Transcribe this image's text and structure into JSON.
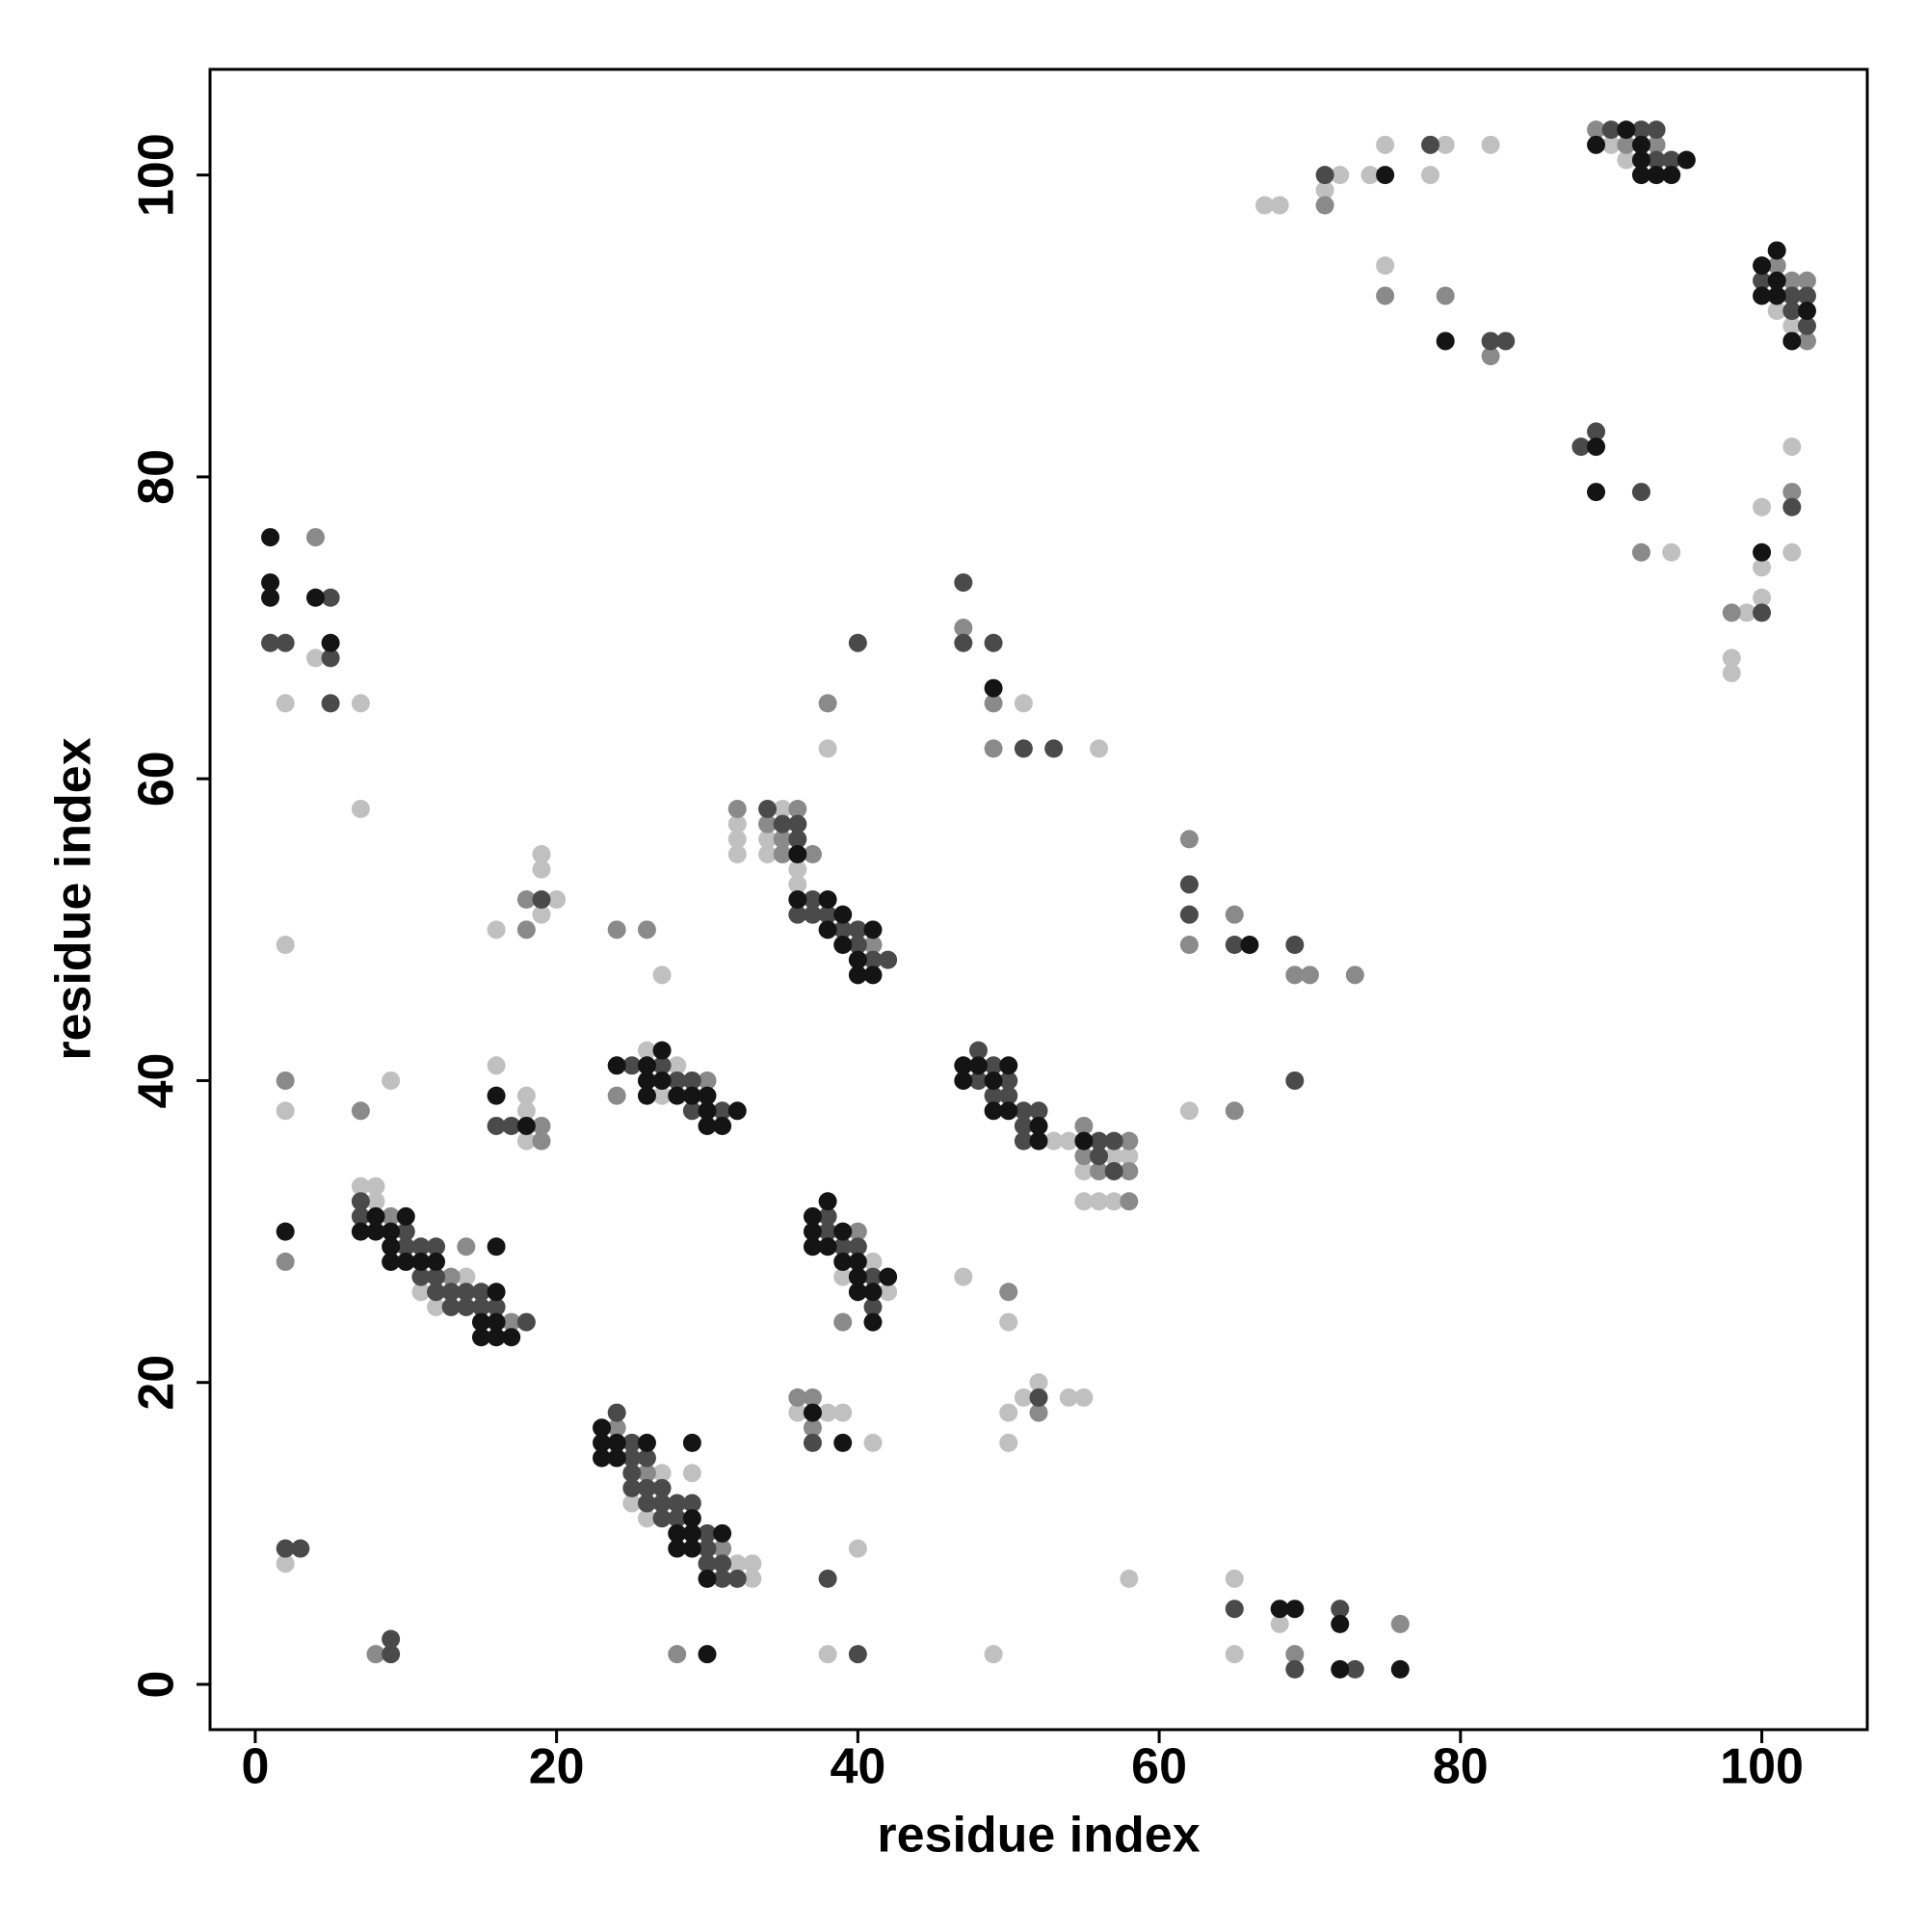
{
  "chart_data": {
    "type": "scatter",
    "xlabel": "residue index",
    "ylabel": "residue index",
    "xlim": [
      -3,
      107
    ],
    "ylim": [
      -3,
      107
    ],
    "xticks": [
      0,
      20,
      40,
      60,
      80,
      100
    ],
    "yticks": [
      0,
      20,
      40,
      60,
      80,
      100
    ],
    "series": [
      {
        "color": "#c0c0c0",
        "x": [
          2,
          2,
          2,
          8,
          7,
          8,
          11,
          12,
          14,
          9,
          7,
          7,
          18,
          18,
          18,
          16,
          16,
          19,
          19,
          19,
          20,
          4,
          2,
          25,
          26,
          27,
          29,
          32,
          33,
          33,
          26,
          27,
          28,
          27,
          32,
          32,
          32,
          34,
          34,
          35,
          36,
          36,
          38,
          39,
          41,
          42,
          36,
          38,
          39,
          41,
          40,
          38,
          53,
          54,
          55,
          55,
          56,
          57,
          57,
          58,
          51,
          56,
          47,
          50,
          50,
          50,
          51,
          52,
          54,
          55,
          49,
          58,
          62,
          65,
          65,
          68,
          67,
          68,
          71,
          72,
          74,
          75,
          78,
          79,
          82,
          75,
          90,
          91,
          94,
          101,
          102,
          102,
          102,
          100,
          100,
          100,
          99,
          98,
          98
        ],
        "y": [
          8,
          38,
          49,
          33,
          33,
          32,
          26,
          25,
          27,
          40,
          58,
          65,
          39,
          38,
          36,
          41,
          50,
          51,
          54,
          55,
          52,
          68,
          65,
          12,
          11,
          14,
          14,
          8,
          8,
          7,
          42,
          39,
          41,
          47,
          57,
          56,
          55,
          56,
          55,
          58,
          54,
          53,
          62,
          27,
          28,
          26,
          18,
          18,
          18,
          16,
          9,
          2,
          36,
          36,
          34,
          32,
          32,
          35,
          32,
          35,
          65,
          62,
          27,
          24,
          18,
          16,
          19,
          20,
          19,
          19,
          2,
          7,
          38,
          7,
          2,
          4,
          98,
          98,
          99,
          100,
          100,
          102,
          100,
          102,
          102,
          94,
          102,
          101,
          75,
          91,
          90,
          82,
          75,
          78,
          74,
          72,
          71,
          68,
          67
        ]
      },
      {
        "color": "#8a8a8a",
        "x": [
          8,
          2,
          2,
          9,
          13,
          14,
          17,
          7,
          19,
          19,
          18,
          18,
          4,
          24,
          26,
          31,
          28,
          24,
          30,
          24,
          26,
          32,
          34,
          35,
          35,
          36,
          37,
          41,
          38,
          39,
          40,
          37,
          36,
          37,
          55,
          55,
          56,
          58,
          58,
          58,
          47,
          49,
          49,
          50,
          52,
          62,
          62,
          65,
          69,
          70,
          73,
          65,
          69,
          76,
          71,
          75,
          79,
          82,
          89,
          91,
          93,
          92,
          101,
          102,
          103,
          103,
          102,
          98
        ],
        "y": [
          2,
          28,
          40,
          31,
          27,
          29,
          24,
          38,
          37,
          36,
          50,
          52,
          76,
          17,
          14,
          9,
          2,
          39,
          40,
          50,
          50,
          58,
          57,
          56,
          55,
          58,
          55,
          49,
          65,
          24,
          30,
          19,
          19,
          17,
          37,
          35,
          34,
          36,
          34,
          32,
          70,
          65,
          62,
          26,
          18,
          56,
          49,
          51,
          47,
          47,
          47,
          38,
          2,
          4,
          98,
          92,
          92,
          88,
          103,
          102,
          102,
          75,
          94,
          93,
          93,
          89,
          79,
          71
        ]
      },
      {
        "color": "#4a4a4a",
        "x": [
          9,
          9,
          2,
          3,
          7,
          7,
          10,
          10,
          11,
          11,
          12,
          12,
          12,
          13,
          13,
          14,
          14,
          15,
          15,
          16,
          18,
          16,
          17,
          19,
          1,
          2,
          5,
          5,
          5,
          24,
          25,
          25,
          25,
          25,
          26,
          26,
          26,
          27,
          27,
          27,
          28,
          28,
          29,
          30,
          30,
          30,
          31,
          31,
          32,
          25,
          27,
          28,
          29,
          29,
          31,
          34,
          35,
          36,
          36,
          36,
          37,
          37,
          38,
          39,
          40,
          40,
          41,
          42,
          40,
          38,
          38,
          39,
          40,
          41,
          41,
          37,
          38,
          40,
          48,
          48,
          49,
          49,
          50,
          50,
          51,
          51,
          51,
          52,
          56,
          56,
          57,
          57,
          47,
          47,
          49,
          51,
          53,
          52,
          62,
          62,
          65,
          69,
          69,
          65,
          69,
          72,
          73,
          71,
          78,
          82,
          83,
          90,
          92,
          93,
          93,
          94,
          88,
          89,
          92,
          100,
          102,
          102,
          103,
          103,
          102,
          100
        ],
        "y": [
          2,
          3,
          9,
          9,
          32,
          31,
          30,
          29,
          29,
          27,
          29,
          27,
          26,
          26,
          25,
          26,
          25,
          26,
          25,
          25,
          24,
          37,
          37,
          52,
          69,
          69,
          72,
          68,
          65,
          18,
          16,
          15,
          14,
          13,
          15,
          13,
          12,
          13,
          12,
          11,
          12,
          11,
          12,
          10,
          9,
          8,
          8,
          7,
          7,
          41,
          41,
          40,
          40,
          38,
          38,
          58,
          57,
          57,
          56,
          51,
          52,
          51,
          51,
          50,
          50,
          49,
          48,
          48,
          69,
          31,
          30,
          29,
          29,
          27,
          25,
          16,
          7,
          2,
          42,
          40,
          41,
          39,
          40,
          39,
          38,
          37,
          36,
          38,
          36,
          35,
          36,
          34,
          73,
          69,
          69,
          62,
          62,
          19,
          53,
          51,
          49,
          49,
          40,
          5,
          1,
          5,
          1,
          100,
          102,
          89,
          89,
          103,
          103,
          103,
          101,
          101,
          82,
          83,
          79,
          93,
          92,
          91,
          92,
          90,
          78,
          71
        ]
      },
      {
        "color": "#141414",
        "x": [
          2,
          7,
          8,
          8,
          9,
          9,
          9,
          10,
          10,
          11,
          12,
          15,
          15,
          16,
          16,
          16,
          16,
          17,
          16,
          18,
          1,
          1,
          1,
          4,
          5,
          23,
          23,
          23,
          24,
          24,
          26,
          28,
          28,
          29,
          29,
          29,
          29,
          30,
          31,
          30,
          24,
          26,
          26,
          26,
          27,
          27,
          28,
          29,
          30,
          30,
          30,
          31,
          32,
          36,
          36,
          38,
          38,
          39,
          39,
          40,
          40,
          41,
          41,
          37,
          37,
          37,
          38,
          38,
          39,
          39,
          40,
          40,
          40,
          41,
          41,
          42,
          37,
          39,
          47,
          47,
          48,
          49,
          49,
          50,
          50,
          52,
          52,
          55,
          49,
          66,
          68,
          69,
          72,
          72,
          76,
          75,
          79,
          89,
          91,
          92,
          92,
          92,
          93,
          94,
          95,
          89,
          89,
          100,
          100,
          101,
          101,
          101,
          102,
          103,
          100
        ],
        "y": [
          30,
          30,
          31,
          30,
          30,
          29,
          28,
          31,
          28,
          28,
          28,
          24,
          23,
          29,
          26,
          24,
          23,
          23,
          39,
          37,
          76,
          73,
          72,
          72,
          69,
          17,
          16,
          15,
          16,
          15,
          16,
          10,
          9,
          16,
          11,
          10,
          9,
          7,
          10,
          2,
          41,
          41,
          40,
          39,
          42,
          40,
          39,
          39,
          39,
          38,
          37,
          37,
          38,
          55,
          52,
          52,
          50,
          51,
          49,
          48,
          47,
          50,
          47,
          31,
          30,
          29,
          32,
          29,
          30,
          28,
          28,
          27,
          26,
          26,
          24,
          27,
          18,
          16,
          41,
          40,
          41,
          40,
          38,
          41,
          38,
          37,
          36,
          36,
          66,
          49,
          5,
          5,
          4,
          1,
          1,
          100,
          89,
          102,
          103,
          102,
          101,
          100,
          100,
          100,
          101,
          82,
          79,
          94,
          92,
          95,
          93,
          92,
          89,
          91,
          75
        ]
      }
    ]
  }
}
